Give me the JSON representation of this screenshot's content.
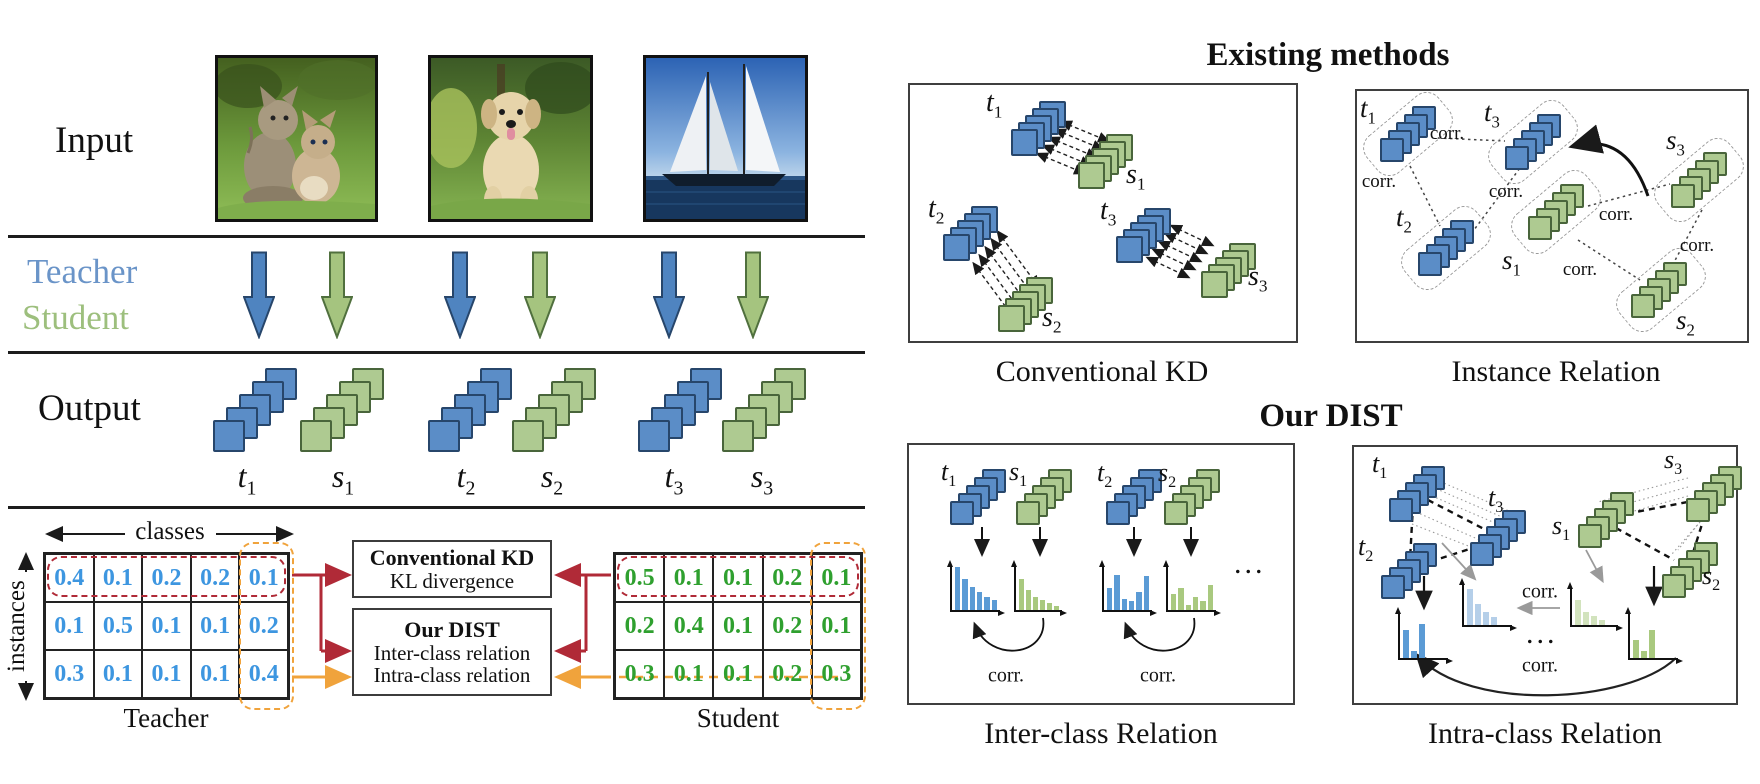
{
  "palette": {
    "teacher_blue_fill": "#5b8dc7",
    "teacher_blue_stroke": "#27466b",
    "student_green_fill": "#aeca91",
    "student_green_stroke": "#49653b",
    "teacher_label_text": "#6a94c8",
    "student_label_text": "#9dbf7d",
    "teacher_matrix_value": "#3d96e0",
    "student_matrix_value": "#2fa02f",
    "red_accent": "#b02a37",
    "orange_accent": "#f0a33c",
    "hist_blue": "#5b9bd5",
    "hist_green": "#a9c97f",
    "hist_blue_light": "#b5cfe9",
    "hist_green_light": "#d2e3bd"
  },
  "left": {
    "row_labels": {
      "input": "Input",
      "teacher": "Teacher",
      "student": "Student",
      "output": "Output"
    },
    "images": [
      {
        "alt": "two kittens on grass"
      },
      {
        "alt": "puppy sitting on grass"
      },
      {
        "alt": "sailboat on the sea"
      }
    ],
    "outputs": [
      {
        "base": "t",
        "sub": "1"
      },
      {
        "base": "s",
        "sub": "1"
      },
      {
        "base": "t",
        "sub": "2"
      },
      {
        "base": "s",
        "sub": "2"
      },
      {
        "base": "t",
        "sub": "3"
      },
      {
        "base": "s",
        "sub": "3"
      }
    ],
    "axis": {
      "classes": "classes",
      "instances": "instances"
    },
    "teacher_matrix": {
      "caption": "Teacher",
      "rows": [
        [
          "0.4",
          "0.1",
          "0.2",
          "0.2",
          "0.1"
        ],
        [
          "0.1",
          "0.5",
          "0.1",
          "0.1",
          "0.2"
        ],
        [
          "0.3",
          "0.1",
          "0.1",
          "0.1",
          "0.4"
        ]
      ]
    },
    "student_matrix": {
      "caption": "Student",
      "rows": [
        [
          "0.5",
          "0.1",
          "0.1",
          "0.2",
          "0.1"
        ],
        [
          "0.2",
          "0.4",
          "0.1",
          "0.2",
          "0.1"
        ],
        [
          "0.3",
          "0.1",
          "0.1",
          "0.2",
          "0.3"
        ]
      ]
    },
    "kd_box": {
      "title": "Conventional KD",
      "line1": "KL divergence"
    },
    "dist_box": {
      "title": "Our DIST",
      "line1": "Inter-class relation",
      "line2": "Intra-class relation"
    }
  },
  "right": {
    "existing_title": "Existing methods",
    "our_title": "Our DIST",
    "captions": {
      "conv": "Conventional KD",
      "inst": "Instance Relation",
      "inter": "Inter-class Relation",
      "intra": "Intra-class Relation"
    },
    "corr": "corr.",
    "ellipsis": "..."
  },
  "labels": {
    "t1": {
      "base": "t",
      "sub": "1"
    },
    "t2": {
      "base": "t",
      "sub": "2"
    },
    "t3": {
      "base": "t",
      "sub": "3"
    },
    "s1": {
      "base": "s",
      "sub": "1"
    },
    "s2": {
      "base": "s",
      "sub": "2"
    },
    "s3": {
      "base": "s",
      "sub": "3"
    }
  },
  "chart_data": {
    "type": "bar",
    "inter_hists": [
      {
        "name": "t1 prediction",
        "color": "blue",
        "bars": [
          0.95,
          0.68,
          0.52,
          0.4,
          0.3,
          0.22
        ]
      },
      {
        "name": "s1 prediction",
        "color": "green",
        "bars": [
          0.7,
          0.45,
          0.3,
          0.22,
          0.15,
          0.1
        ]
      },
      {
        "name": "t2 prediction",
        "color": "blue",
        "bars": [
          0.5,
          0.78,
          0.25,
          0.2,
          0.4,
          0.75
        ]
      },
      {
        "name": "s2 prediction",
        "color": "green",
        "bars": [
          0.35,
          0.5,
          0.12,
          0.3,
          0.2,
          0.55
        ]
      }
    ],
    "intra_hists": [
      {
        "name": "teacher class distribution",
        "color": "blue",
        "bars": [
          0.6,
          0.15,
          0.75
        ]
      },
      {
        "name": "teacher class distribution faded",
        "color": "blue_light",
        "bars": [
          0.85,
          0.5,
          0.3,
          0.18
        ]
      },
      {
        "name": "student class distribution faded",
        "color": "green_light",
        "bars": [
          0.65,
          0.35,
          0.25,
          0.12
        ]
      },
      {
        "name": "student class distribution",
        "color": "green",
        "bars": [
          0.4,
          0.15,
          0.6
        ]
      }
    ]
  }
}
